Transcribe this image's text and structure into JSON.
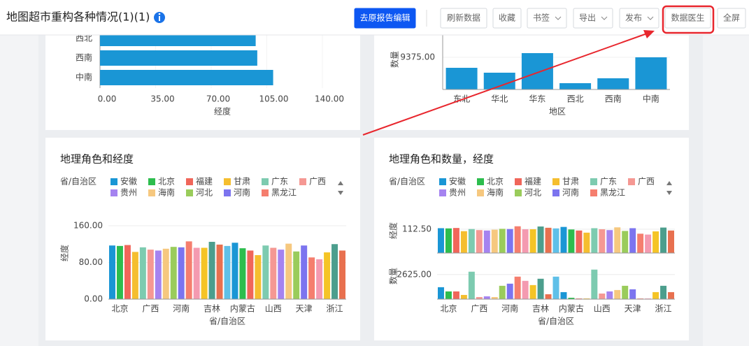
{
  "header": {
    "title": "地图超市重构各种情况(1)(1)",
    "buttons": [
      "去原报告编辑",
      "刷新数据",
      "收藏",
      "书签",
      "导出",
      "发布",
      "数据医生",
      "全屏"
    ]
  },
  "chart_data": [
    {
      "type": "bar",
      "orientation": "horizontal",
      "categories": [
        "西北",
        "西南",
        "中南"
      ],
      "values": [
        98,
        99,
        109
      ],
      "color": "#1a96d5",
      "xlim": [
        0,
        140
      ],
      "xticks": [
        {
          "value": 0,
          "label": "0.00"
        },
        {
          "value": 35,
          "label": "35.00"
        },
        {
          "value": 70,
          "label": "70.00"
        },
        {
          "value": 105,
          "label": "105.00"
        },
        {
          "value": 140,
          "label": "140.00"
        }
      ],
      "x_label": "经度"
    },
    {
      "type": "bar",
      "categories": [
        "东北",
        "华北",
        "华东",
        "西北",
        "西南",
        "中南"
      ],
      "values": [
        6318,
        4891,
        10598,
        1834,
        3261,
        9375
      ],
      "color": "#1a96d5",
      "ylim": [
        0,
        18750
      ],
      "yticks": [
        {
          "value": 9375,
          "label": "9375.00"
        }
      ],
      "x_label": "地区",
      "y_label": "数量"
    },
    {
      "type": "bar",
      "title": "地理角色和经度",
      "legend": {
        "title": "省/自治区",
        "items": [
          "安徽",
          "北京",
          "福建",
          "甘肃",
          "广东",
          "广西",
          "贵州",
          "海南",
          "河北",
          "河南",
          "黑龙江"
        ]
      },
      "colors": [
        "#1a96d5",
        "#2dbd4e",
        "#f0665a",
        "#f5be2f",
        "#7dcbb0",
        "#f59893",
        "#a583f0",
        "#f6c87f",
        "#9acc5b",
        "#7c74ef",
        "#f57e6e",
        "#f49ab0",
        "#f5c426",
        "#4c9e8d",
        "#e8704f",
        "#5fc0e8"
      ],
      "categories": [
        null,
        "北京",
        null,
        null,
        null,
        "广西",
        null,
        null,
        null,
        "河南",
        null,
        null,
        null,
        "吉林",
        null,
        null,
        null,
        "内蒙古",
        null,
        null,
        null,
        "山西",
        null,
        null,
        null,
        "天津",
        null,
        null,
        null,
        "浙江",
        null
      ],
      "values": [
        117,
        116,
        118,
        103,
        113,
        108,
        106,
        110,
        114,
        113,
        126,
        112,
        112,
        125,
        119,
        116,
        123,
        111,
        106,
        96,
        117,
        112,
        108,
        121,
        104,
        117,
        91,
        87,
        102,
        120,
        106
      ],
      "ylim": [
        0,
        160
      ],
      "yticks": [
        {
          "value": 0,
          "label": "0.00"
        },
        {
          "value": 80,
          "label": "80.00"
        },
        {
          "value": 160,
          "label": "160.00"
        }
      ],
      "x_label": "省/自治区",
      "y_label": "经度",
      "grid": true
    },
    {
      "type": "bar",
      "title": "地理角色和数量，经度",
      "legend": {
        "title": "省/自治区",
        "items": [
          "安徽",
          "北京",
          "福建",
          "甘肃",
          "广东",
          "广西",
          "贵州",
          "海南",
          "河北",
          "河南",
          "黑龙江"
        ]
      },
      "colors": [
        "#1a96d5",
        "#2dbd4e",
        "#f0665a",
        "#f5be2f",
        "#7dcbb0",
        "#f59893",
        "#a583f0",
        "#f6c87f",
        "#9acc5b",
        "#7c74ef",
        "#f57e6e",
        "#f49ab0",
        "#f5c426",
        "#4c9e8d",
        "#e8704f",
        "#5fc0e8"
      ],
      "categories": [
        null,
        "北京",
        null,
        null,
        null,
        "广西",
        null,
        null,
        null,
        "河南",
        null,
        null,
        null,
        "吉林",
        null,
        null,
        null,
        "内蒙古",
        null,
        null,
        null,
        "山西",
        null,
        null,
        null,
        "天津",
        null,
        null,
        null,
        "浙江",
        null
      ],
      "panels": [
        {
          "y_label": "经度",
          "values": [
            117,
            116,
            118,
            103,
            113,
            108,
            106,
            110,
            114,
            113,
            126,
            112,
            112,
            125,
            119,
            116,
            123,
            111,
            106,
            96,
            117,
            112,
            108,
            121,
            104,
            117,
            91,
            87,
            102,
            120,
            106
          ],
          "ylim": [
            0,
            135
          ],
          "yticks": [
            {
              "value": 112.5,
              "label": "112.50"
            }
          ]
        },
        {
          "y_label": "数量",
          "values": [
            1275,
            825,
            825,
            450,
            2925,
            225,
            300,
            225,
            1425,
            1650,
            2400,
            1950,
            1500,
            2175,
            525,
            2400,
            750,
            150,
            75,
            75,
            3150,
            600,
            825,
            975,
            1425,
            1050,
            75,
            75,
            750,
            1425,
            750
          ],
          "ylim": [
            0,
            3500
          ],
          "yticks": [
            {
              "value": 2625,
              "label": "2625.00"
            }
          ]
        }
      ],
      "x_label": "省/自治区"
    }
  ]
}
